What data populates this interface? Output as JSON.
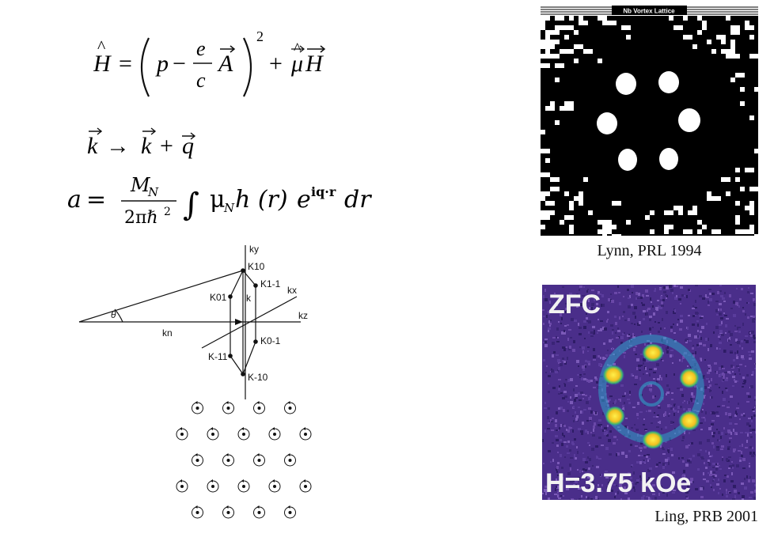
{
  "equations": {
    "hamiltonian": {
      "H": "H",
      "eq": "=",
      "p": "p",
      "minus": "−",
      "e": "e",
      "c": "c",
      "A": "A",
      "power": "2",
      "plus": "+",
      "mu": "μ",
      "H2": "H"
    },
    "wavevector": {
      "k1": "k",
      "arrow": "→",
      "k2": "k",
      "plus": "+",
      "q": "q"
    },
    "scattering_length": {
      "a": "a",
      "eq": "=",
      "MN": "M",
      "MN_sub": "N",
      "denom": "2πℏ",
      "denom_pow": "2",
      "integral": "∫",
      "muN": "μ",
      "muN_sub": "N",
      "h_r": "h (r)",
      "exp": "e",
      "exp_pow": "iq·r",
      "dr": "dr"
    }
  },
  "diagram": {
    "theta": "θ",
    "labels": {
      "ky": "ky",
      "kx": "kx",
      "kz": "kz",
      "k10": "K10",
      "k1m1": "K1-1",
      "k01": "K01",
      "k": "k",
      "kn": "kn",
      "k0m1": "K0-1",
      "km11": "K-11",
      "km10": "K-10"
    }
  },
  "figures": {
    "lynn": {
      "header": "Nb Vortex Lattice",
      "caption": "Lynn, PRL 1994"
    },
    "ling": {
      "top_label": "ZFC",
      "bottom_label": "H=3.75  kOe",
      "caption": "Ling, PRB 2001"
    }
  },
  "colors": {
    "ling_bg": "#4a2e8a",
    "spot": "#f4e04a",
    "ring": "#2fa0c8"
  }
}
